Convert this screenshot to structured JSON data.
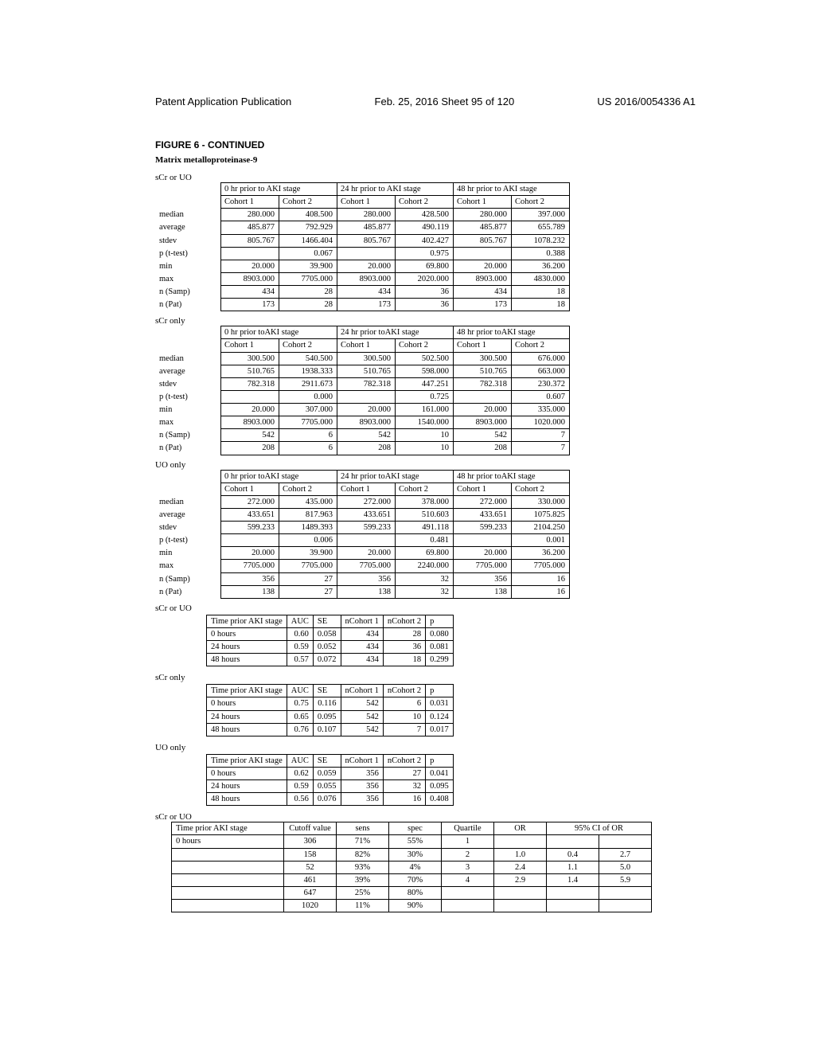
{
  "header": {
    "left": "Patent Application Publication",
    "mid": "Feb. 25, 2016  Sheet 95 of 120",
    "right": "US 2016/0054336 A1"
  },
  "figure_title": "FIGURE 6 - CONTINUED",
  "subtitle": "Matrix metalloproteinase-9",
  "labels": {
    "scr_or_uo": "sCr or UO",
    "scr_only": "sCr only",
    "uo_only": "UO only"
  },
  "stat_headers": {
    "h0": "0 hr prior to AKI stage",
    "h0_alt": "0 hr prior toAKI stage",
    "h24": "24 hr prior to AKI stage",
    "h24_alt": "24 hr prior toAKI stage",
    "h48": "48 hr prior to AKI stage",
    "h48_alt": "48 hr prior toAKI stage",
    "c1": "Cohort 1",
    "c2": "Cohort 2"
  },
  "stat_rows": [
    "median",
    "average",
    "stdev",
    "p (t-test)",
    "min",
    "max",
    "n (Samp)",
    "n (Pat)"
  ],
  "table1": {
    "rows": [
      [
        "280.000",
        "408.500",
        "280.000",
        "428.500",
        "280.000",
        "397.000"
      ],
      [
        "485.877",
        "792.929",
        "485.877",
        "490.119",
        "485.877",
        "655.789"
      ],
      [
        "805.767",
        "1466.404",
        "805.767",
        "402.427",
        "805.767",
        "1078.232"
      ],
      [
        "",
        "0.067",
        "",
        "0.975",
        "",
        "0.388"
      ],
      [
        "20.000",
        "39.900",
        "20.000",
        "69.800",
        "20.000",
        "36.200"
      ],
      [
        "8903.000",
        "7705.000",
        "8903.000",
        "2020.000",
        "8903.000",
        "4830.000"
      ],
      [
        "434",
        "28",
        "434",
        "36",
        "434",
        "18"
      ],
      [
        "173",
        "28",
        "173",
        "36",
        "173",
        "18"
      ]
    ]
  },
  "table2": {
    "rows": [
      [
        "300.500",
        "540.500",
        "300.500",
        "502.500",
        "300.500",
        "676.000"
      ],
      [
        "510.765",
        "1938.333",
        "510.765",
        "598.000",
        "510.765",
        "663.000"
      ],
      [
        "782.318",
        "2911.673",
        "782.318",
        "447.251",
        "782.318",
        "230.372"
      ],
      [
        "",
        "0.000",
        "",
        "0.725",
        "",
        "0.607"
      ],
      [
        "20.000",
        "307.000",
        "20.000",
        "161.000",
        "20.000",
        "335.000"
      ],
      [
        "8903.000",
        "7705.000",
        "8903.000",
        "1540.000",
        "8903.000",
        "1020.000"
      ],
      [
        "542",
        "6",
        "542",
        "10",
        "542",
        "7"
      ],
      [
        "208",
        "6",
        "208",
        "10",
        "208",
        "7"
      ]
    ]
  },
  "table3": {
    "rows": [
      [
        "272.000",
        "435.000",
        "272.000",
        "378.000",
        "272.000",
        "330.000"
      ],
      [
        "433.651",
        "817.963",
        "433.651",
        "510.603",
        "433.651",
        "1075.825"
      ],
      [
        "599.233",
        "1489.393",
        "599.233",
        "491.118",
        "599.233",
        "2104.250"
      ],
      [
        "",
        "0.006",
        "",
        "0.481",
        "",
        "0.001"
      ],
      [
        "20.000",
        "39.900",
        "20.000",
        "69.800",
        "20.000",
        "36.200"
      ],
      [
        "7705.000",
        "7705.000",
        "7705.000",
        "2240.000",
        "7705.000",
        "7705.000"
      ],
      [
        "356",
        "27",
        "356",
        "32",
        "356",
        "16"
      ],
      [
        "138",
        "27",
        "138",
        "32",
        "138",
        "16"
      ]
    ]
  },
  "auc_headers": [
    "Time prior AKI stage",
    "AUC",
    "SE",
    "nCohort 1",
    "nCohort 2",
    "p"
  ],
  "auc1": [
    [
      "0 hours",
      "0.60",
      "0.058",
      "434",
      "28",
      "0.080"
    ],
    [
      "24 hours",
      "0.59",
      "0.052",
      "434",
      "36",
      "0.081"
    ],
    [
      "48 hours",
      "0.57",
      "0.072",
      "434",
      "18",
      "0.299"
    ]
  ],
  "auc2": [
    [
      "0 hours",
      "0.75",
      "0.116",
      "542",
      "6",
      "0.031"
    ],
    [
      "24 hours",
      "0.65",
      "0.095",
      "542",
      "10",
      "0.124"
    ],
    [
      "48 hours",
      "0.76",
      "0.107",
      "542",
      "7",
      "0.017"
    ]
  ],
  "auc3": [
    [
      "0 hours",
      "0.62",
      "0.059",
      "356",
      "27",
      "0.041"
    ],
    [
      "24 hours",
      "0.59",
      "0.055",
      "356",
      "32",
      "0.095"
    ],
    [
      "48 hours",
      "0.56",
      "0.076",
      "356",
      "16",
      "0.408"
    ]
  ],
  "cutoff_headers": [
    "Time prior AKI stage",
    "Cutoff value",
    "sens",
    "spec",
    "Quartile",
    "OR",
    "95% CI of OR"
  ],
  "cutoff": {
    "label": "0 hours",
    "rows": [
      [
        "306",
        "71%",
        "55%",
        "1",
        "",
        "",
        ""
      ],
      [
        "158",
        "82%",
        "30%",
        "2",
        "1.0",
        "0.4",
        "2.7"
      ],
      [
        "52",
        "93%",
        "4%",
        "3",
        "2.4",
        "1.1",
        "5.0"
      ],
      [
        "461",
        "39%",
        "70%",
        "4",
        "2.9",
        "1.4",
        "5.9"
      ],
      [
        "647",
        "25%",
        "80%",
        "",
        "",
        "",
        ""
      ],
      [
        "1020",
        "11%",
        "90%",
        "",
        "",
        "",
        ""
      ]
    ]
  }
}
